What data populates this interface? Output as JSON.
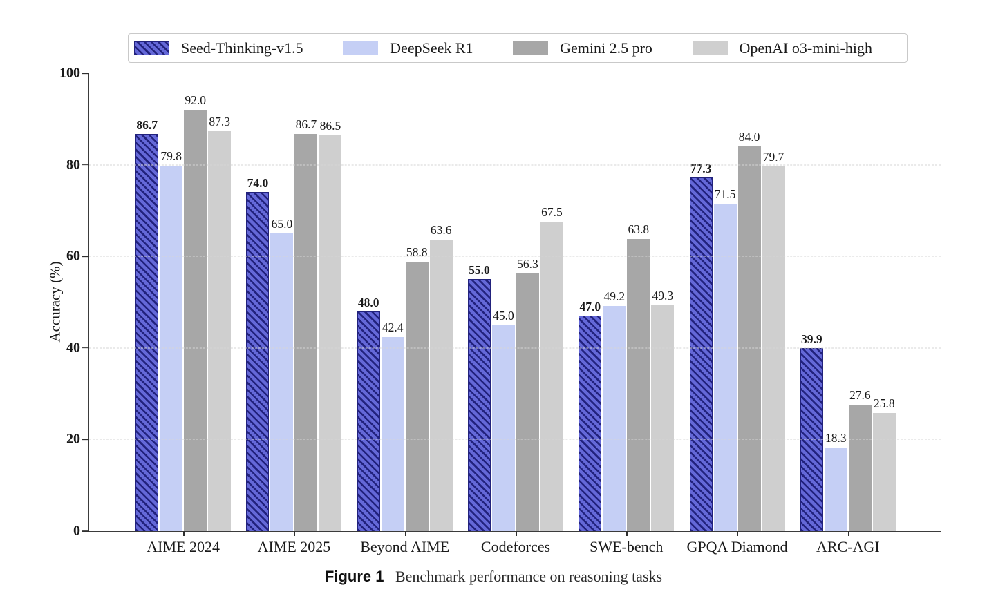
{
  "figure": {
    "caption_label": "Figure 1",
    "caption_text": "Benchmark performance on reasoning tasks"
  },
  "chart_data": {
    "type": "bar",
    "title": "",
    "caption": "Figure 1  Benchmark performance on reasoning tasks",
    "xlabel": "",
    "ylabel": "Accuracy (%)",
    "ylim": [
      0,
      100
    ],
    "yticks": [
      0,
      20,
      40,
      60,
      80,
      100
    ],
    "grid": "horizontal dashed at 20, 40, 60, 80",
    "legend_position": "top",
    "value_label_format": "one-decimal",
    "categories": [
      "AIME 2024",
      "AIME 2025",
      "Beyond AIME",
      "Codeforces",
      "SWE-bench",
      "GPQA Diamond",
      "ARC-AGI"
    ],
    "series": [
      {
        "name": "Seed-Thinking-v1.5",
        "color": "#6468d8",
        "hatch": "diagonal-forward",
        "hatch_color": "#22227d",
        "bold_value_labels": true,
        "values": [
          86.7,
          74.0,
          48.0,
          55.0,
          47.0,
          77.3,
          39.9
        ]
      },
      {
        "name": "DeepSeek R1",
        "color": "#c5cff5",
        "hatch": "none",
        "bold_value_labels": false,
        "values": [
          79.8,
          65.0,
          42.4,
          45.0,
          49.2,
          71.5,
          18.3
        ]
      },
      {
        "name": "Gemini 2.5 pro",
        "color": "#a7a7a7",
        "hatch": "none",
        "bold_value_labels": false,
        "values": [
          92.0,
          86.7,
          58.8,
          56.3,
          63.8,
          84.0,
          27.6
        ]
      },
      {
        "name": "OpenAI o3-mini-high",
        "color": "#cfcfcf",
        "hatch": "none",
        "bold_value_labels": false,
        "values": [
          87.3,
          86.5,
          63.6,
          67.5,
          49.3,
          79.7,
          25.8
        ]
      }
    ],
    "colors": {
      "grid": "#d6d6d6",
      "spine_dark": "#3b3b3b",
      "spine_light": "#787878",
      "text": "#1a1a1a",
      "legend_border": "#c9c9c9"
    }
  }
}
